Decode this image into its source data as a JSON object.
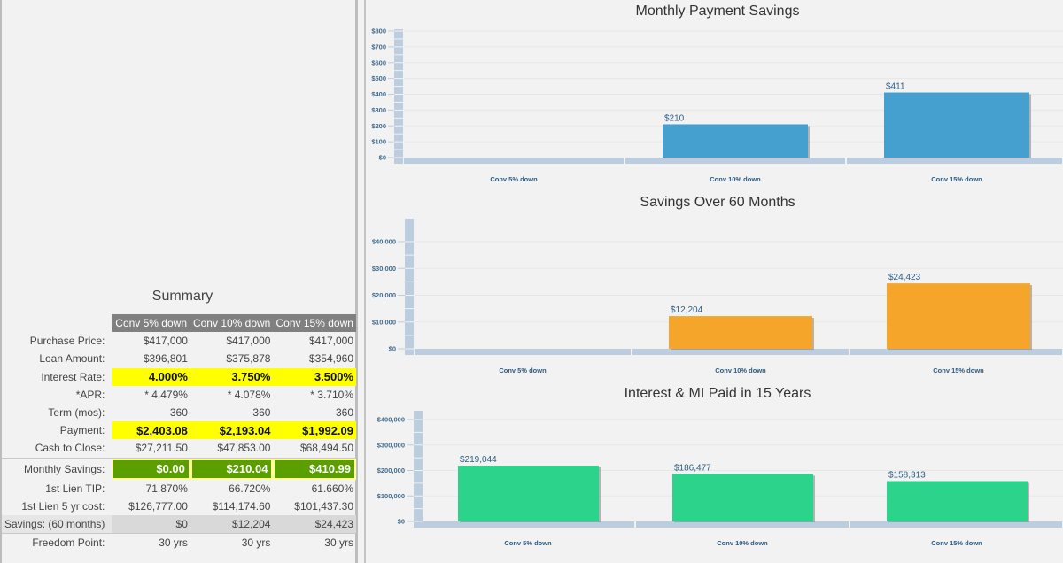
{
  "summary": {
    "title": "Summary",
    "columns": [
      "Conv 5% down",
      "Conv 10% down",
      "Conv 15% down"
    ],
    "rows": [
      {
        "label": "Purchase Price:",
        "values": [
          "$417,000",
          "$417,000",
          "$417,000"
        ],
        "style": "plain"
      },
      {
        "label": "Loan Amount:",
        "values": [
          "$396,801",
          "$375,878",
          "$354,960"
        ],
        "style": "plain"
      },
      {
        "label": "Interest Rate:",
        "values": [
          "4.000%",
          "3.750%",
          "3.500%"
        ],
        "style": "yellow"
      },
      {
        "label": "*APR:",
        "values": [
          "* 4.479%",
          "* 4.078%",
          "* 3.710%"
        ],
        "style": "plain"
      },
      {
        "label": "Term (mos):",
        "values": [
          "360",
          "360",
          "360"
        ],
        "style": "plain"
      },
      {
        "label": "Payment:",
        "values": [
          "$2,403.08",
          "$2,193.04",
          "$1,992.09"
        ],
        "style": "yellow"
      },
      {
        "label": "Cash to Close:",
        "values": [
          "$27,211.50",
          "$47,853.00",
          "$68,494.50"
        ],
        "style": "plain"
      },
      {
        "label": "Monthly Savings:",
        "values": [
          "$0.00",
          "$210.04",
          "$410.99"
        ],
        "style": "green"
      },
      {
        "label": "1st Lien TIP:",
        "values": [
          "71.870%",
          "66.720%",
          "61.660%"
        ],
        "style": "plain"
      },
      {
        "label": "1st Lien 5 yr cost:",
        "values": [
          "$126,777.00",
          "$114,174.60",
          "$101,437.30"
        ],
        "style": "plain"
      },
      {
        "label": "Savings: (60 months)",
        "values": [
          "$0",
          "$12,204",
          "$24,423"
        ],
        "style": "grey"
      },
      {
        "label": "Freedom Point:",
        "values": [
          "30 yrs",
          "30 yrs",
          "30 yrs"
        ],
        "style": "plain"
      }
    ]
  },
  "colors": {
    "monthly_bar": "#46a0cf",
    "savings_bar": "#f6a52b",
    "interest_bar": "#2bd48a",
    "axis_band": "#bccddf",
    "tick_text": "#3f6b8f",
    "header_bg": "#808080",
    "highlight_yellow": "#ffff00",
    "savings_green": "#5a9e00"
  },
  "chart_data": [
    {
      "type": "bar",
      "title": "Monthly Payment Savings",
      "categories": [
        "Conv 5% down",
        "Conv 10% down",
        "Conv 15% down"
      ],
      "values": [
        0,
        210,
        411
      ],
      "data_labels": [
        "",
        "$210",
        "$411"
      ],
      "yticks": [
        "$0",
        "$100",
        "$200",
        "$300",
        "$400",
        "$500",
        "$600",
        "$700",
        "$800"
      ],
      "ylim": [
        0,
        800
      ],
      "xlabel": "",
      "ylabel": "",
      "grid": true,
      "legend": "none"
    },
    {
      "type": "bar",
      "title": "Savings Over 60 Months",
      "categories": [
        "Conv 5% down",
        "Conv 10% down",
        "Conv 15% down"
      ],
      "values": [
        0,
        12204,
        24423
      ],
      "data_labels": [
        "",
        "$12,204",
        "$24,423"
      ],
      "yticks": [
        "$0",
        "$10,000",
        "$20,000",
        "$30,000",
        "$40,000"
      ],
      "ylim": [
        0,
        40000
      ],
      "xlabel": "",
      "ylabel": "",
      "grid": true,
      "legend": "none"
    },
    {
      "type": "bar",
      "title": "Interest & MI Paid in 15 Years",
      "categories": [
        "Conv 5% down",
        "Conv 10% down",
        "Conv 15% down"
      ],
      "values": [
        219044,
        186477,
        158313
      ],
      "data_labels": [
        "$219,044",
        "$186,477",
        "$158,313"
      ],
      "yticks": [
        "$0",
        "$100,000",
        "$200,000",
        "$300,000",
        "$400,000"
      ],
      "ylim": [
        0,
        400000
      ],
      "xlabel": "",
      "ylabel": "",
      "grid": true,
      "legend": "none"
    }
  ]
}
